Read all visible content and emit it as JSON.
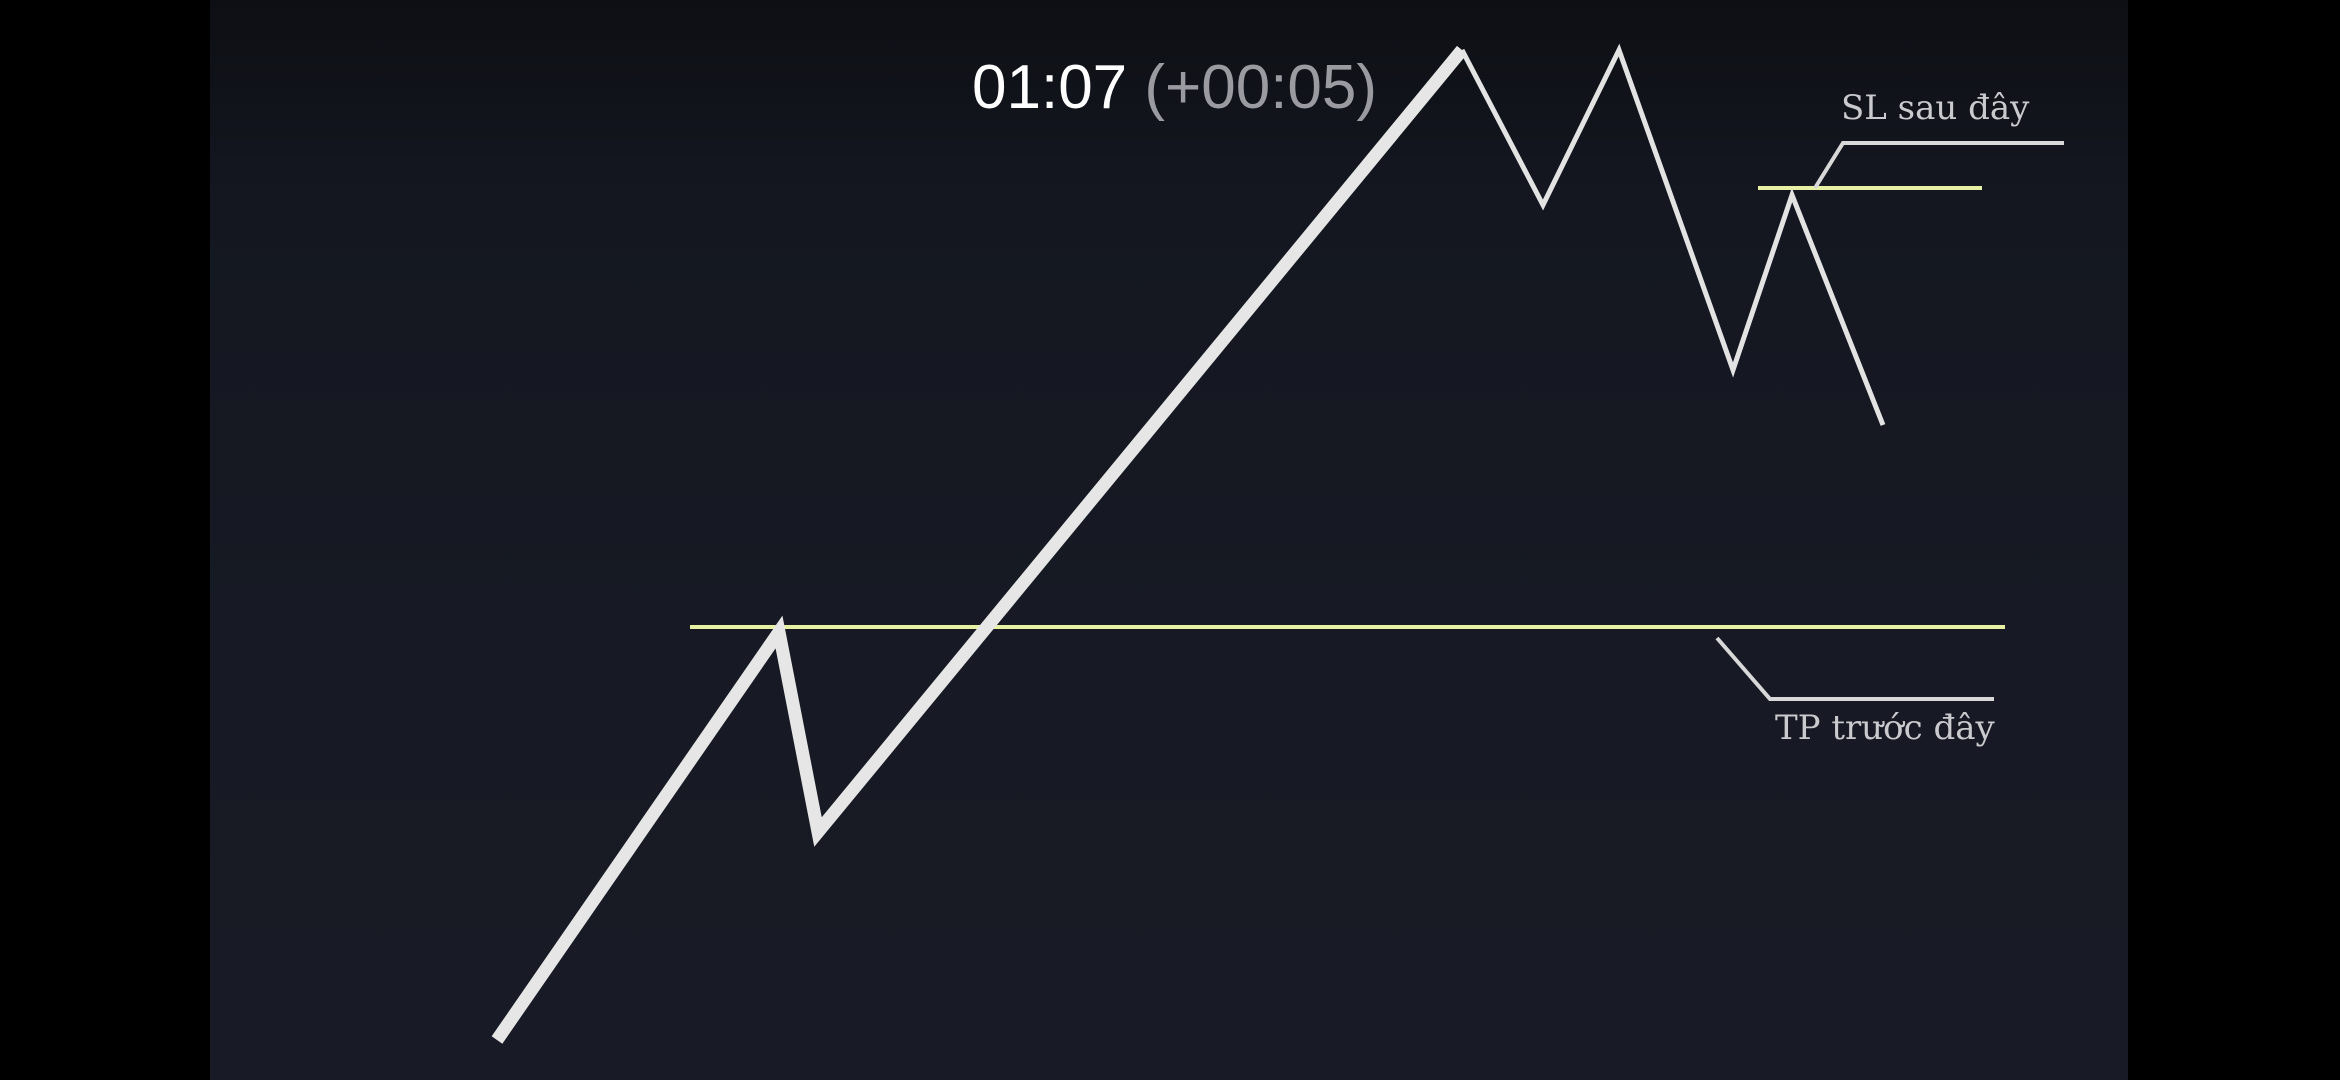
{
  "seek_overlay": {
    "current_time": "01:07",
    "delta": "(+00:05)"
  },
  "annotations": {
    "sl_label": "SL sau đây",
    "tp_label": "TP trước đây"
  },
  "colors": {
    "background": "#171a24",
    "price_line": "#e6e6e6",
    "level_line": "#e8f0a4",
    "pointer_line": "#d8d8d8",
    "letterbox": "#000000"
  }
}
